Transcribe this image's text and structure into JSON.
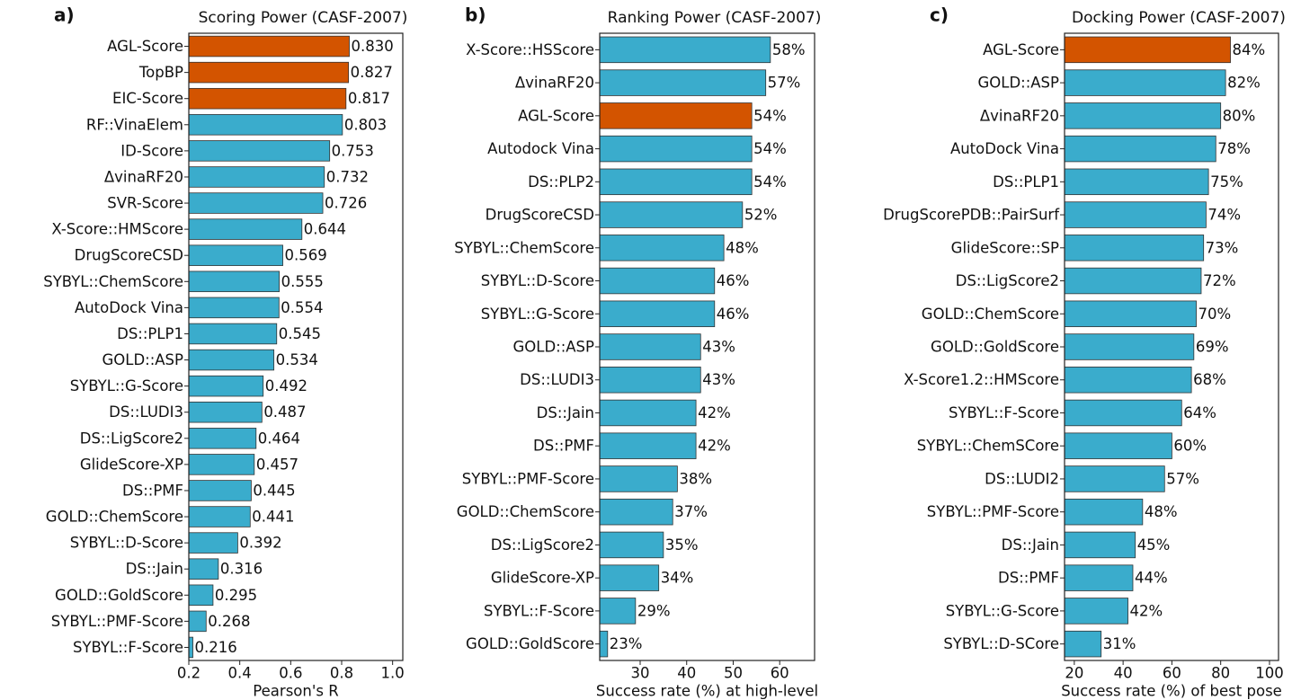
{
  "chart_data": [
    {
      "type": "barh",
      "label": "a)",
      "title": "Scoring Power (CASF-2007)",
      "x_label": "Pearson's R",
      "categories": [
        "AGL-Score",
        "TopBP",
        "EIC-Score",
        "RF::VinaElem",
        "ID-Score",
        "ΔvinaRF20",
        "SVR-Score",
        "X-Score::HMScore",
        "DrugScoreCSD",
        "SYBYL::ChemScore",
        "AutoDock Vina",
        "DS::PLP1",
        "GOLD::ASP",
        "SYBYL::G-Score",
        "DS::LUDI3",
        "DS::LigScore2",
        "GlideScore-XP",
        "DS::PMF",
        "GOLD::ChemScore",
        "SYBYL::D-Score",
        "DS::Jain",
        "GOLD::GoldScore",
        "SYBYL::PMF-Score",
        "SYBYL::F-Score"
      ],
      "values": [
        0.83,
        0.827,
        0.817,
        0.803,
        0.753,
        0.732,
        0.726,
        0.644,
        0.569,
        0.555,
        0.554,
        0.545,
        0.534,
        0.492,
        0.487,
        0.464,
        0.457,
        0.445,
        0.441,
        0.392,
        0.316,
        0.295,
        0.268,
        0.216
      ],
      "value_labels": [
        "0.830",
        "0.827",
        "0.817",
        "0.803",
        "0.753",
        "0.732",
        "0.726",
        "0.644",
        "0.569",
        "0.555",
        "0.554",
        "0.545",
        "0.534",
        "0.492",
        "0.487",
        "0.464",
        "0.457",
        "0.445",
        "0.441",
        "0.392",
        "0.316",
        "0.295",
        "0.268",
        "0.216"
      ],
      "colors": [
        "#d35400",
        "#d35400",
        "#d35400",
        "#3aaccc",
        "#3aaccc",
        "#3aaccc",
        "#3aaccc",
        "#3aaccc",
        "#3aaccc",
        "#3aaccc",
        "#3aaccc",
        "#3aaccc",
        "#3aaccc",
        "#3aaccc",
        "#3aaccc",
        "#3aaccc",
        "#3aaccc",
        "#3aaccc",
        "#3aaccc",
        "#3aaccc",
        "#3aaccc",
        "#3aaccc",
        "#3aaccc",
        "#3aaccc"
      ],
      "xlim": [
        0.2,
        1.04
      ],
      "xticks": [
        0.2,
        0.4,
        0.6,
        0.8,
        {
          "value": 1.0,
          "label": "1.0"
        }
      ]
    },
    {
      "type": "barh",
      "label": "b)",
      "title": "Ranking Power (CASF-2007)",
      "x_label": "Success rate (%) at high-level",
      "categories": [
        "X-Score::HSScore",
        "ΔvinaRF20",
        "AGL-Score",
        "Autodock Vina",
        "DS::PLP2",
        "DrugScoreCSD",
        "SYBYL::ChemScore",
        "SYBYL::D-Score",
        "SYBYL::G-Score",
        "GOLD::ASP",
        "DS::LUDI3",
        "DS::Jain",
        "DS::PMF",
        "SYBYL::PMF-Score",
        "GOLD::ChemScore",
        "DS::LigScore2",
        "GlideScore-XP",
        "SYBYL::F-Score",
        "GOLD::GoldScore"
      ],
      "values": [
        58,
        57,
        54,
        54,
        54,
        52,
        48,
        46,
        46,
        43,
        43,
        42,
        42,
        38,
        37,
        35,
        34,
        29,
        23
      ],
      "value_labels": [
        "58%",
        "57%",
        "54%",
        "54%",
        "54%",
        "52%",
        "48%",
        "46%",
        "46%",
        "43%",
        "43%",
        "42%",
        "42%",
        "38%",
        "37%",
        "35%",
        "34%",
        "29%",
        "23%"
      ],
      "colors": [
        "#3aaccc",
        "#3aaccc",
        "#d35400",
        "#3aaccc",
        "#3aaccc",
        "#3aaccc",
        "#3aaccc",
        "#3aaccc",
        "#3aaccc",
        "#3aaccc",
        "#3aaccc",
        "#3aaccc",
        "#3aaccc",
        "#3aaccc",
        "#3aaccc",
        "#3aaccc",
        "#3aaccc",
        "#3aaccc",
        "#3aaccc"
      ],
      "xlim": [
        21.3,
        67.5
      ],
      "xticks": [
        30,
        40,
        50,
        60
      ]
    },
    {
      "type": "barh",
      "label": "c)",
      "title": "Docking Power (CASF-2007)",
      "x_label": "Success rate (%) of best pose",
      "categories": [
        "AGL-Score",
        "GOLD::ASP",
        "ΔvinaRF20",
        "AutoDock Vina",
        "DS::PLP1",
        "DrugScorePDB::PairSurf",
        "GlideScore::SP",
        "DS::LigScore2",
        "GOLD::ChemScore",
        "GOLD::GoldScore",
        "X-Score1.2::HMScore",
        "SYBYL::F-Score",
        "SYBYL::ChemSCore",
        "DS::LUDI2",
        "SYBYL::PMF-Score",
        "DS::Jain",
        "DS::PMF",
        "SYBYL::G-Score",
        "SYBYL::D-SCore"
      ],
      "values": [
        84,
        82,
        80,
        78,
        75,
        74,
        73,
        72,
        70,
        69,
        68,
        64,
        60,
        57,
        48,
        45,
        44,
        42,
        31
      ],
      "value_labels": [
        "84%",
        "82%",
        "80%",
        "78%",
        "75%",
        "74%",
        "73%",
        "72%",
        "70%",
        "69%",
        "68%",
        "64%",
        "60%",
        "57%",
        "48%",
        "45%",
        "44%",
        "42%",
        "31%"
      ],
      "colors": [
        "#d35400",
        "#3aaccc",
        "#3aaccc",
        "#3aaccc",
        "#3aaccc",
        "#3aaccc",
        "#3aaccc",
        "#3aaccc",
        "#3aaccc",
        "#3aaccc",
        "#3aaccc",
        "#3aaccc",
        "#3aaccc",
        "#3aaccc",
        "#3aaccc",
        "#3aaccc",
        "#3aaccc",
        "#3aaccc",
        "#3aaccc"
      ],
      "xlim": [
        16,
        103.7
      ],
      "xticks": [
        20,
        40,
        60,
        80,
        100
      ]
    }
  ]
}
